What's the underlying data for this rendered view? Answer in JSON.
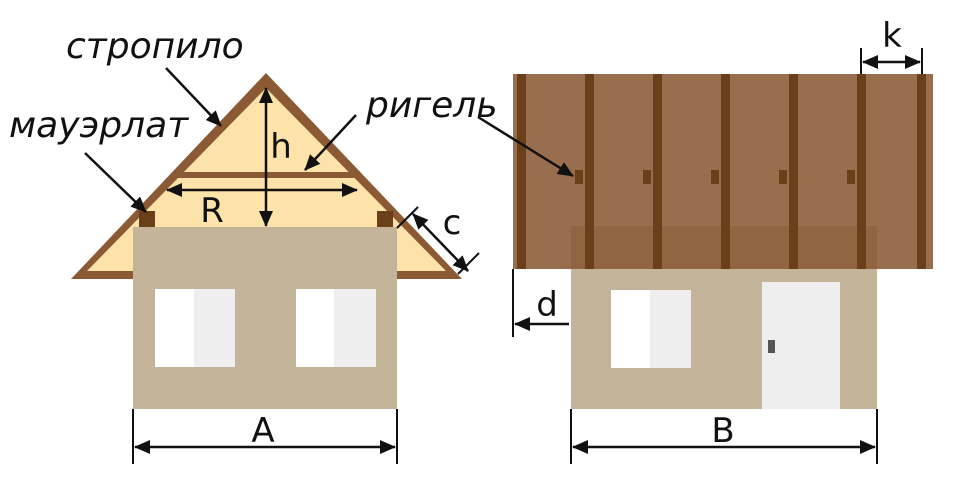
{
  "labels": {
    "rafter": "стропило",
    "wall_plate": "мауэрлат",
    "crossbar": "ригель"
  },
  "dimensions": {
    "h": "h",
    "r": "R",
    "c": "c",
    "a": "A",
    "b": "B",
    "k": "k",
    "d": "d"
  },
  "colors": {
    "wall": "#c4b59a",
    "gable_fill": "#fde3a9",
    "roof_frame": "#8b5a35",
    "roof_panel": "#956549",
    "rafter_dark": "#6b3f19",
    "window_white": "#ffffff",
    "window_shade": "#eeeeee",
    "door": "#eeeeee",
    "handle": "#555555",
    "ink": "#111111"
  }
}
